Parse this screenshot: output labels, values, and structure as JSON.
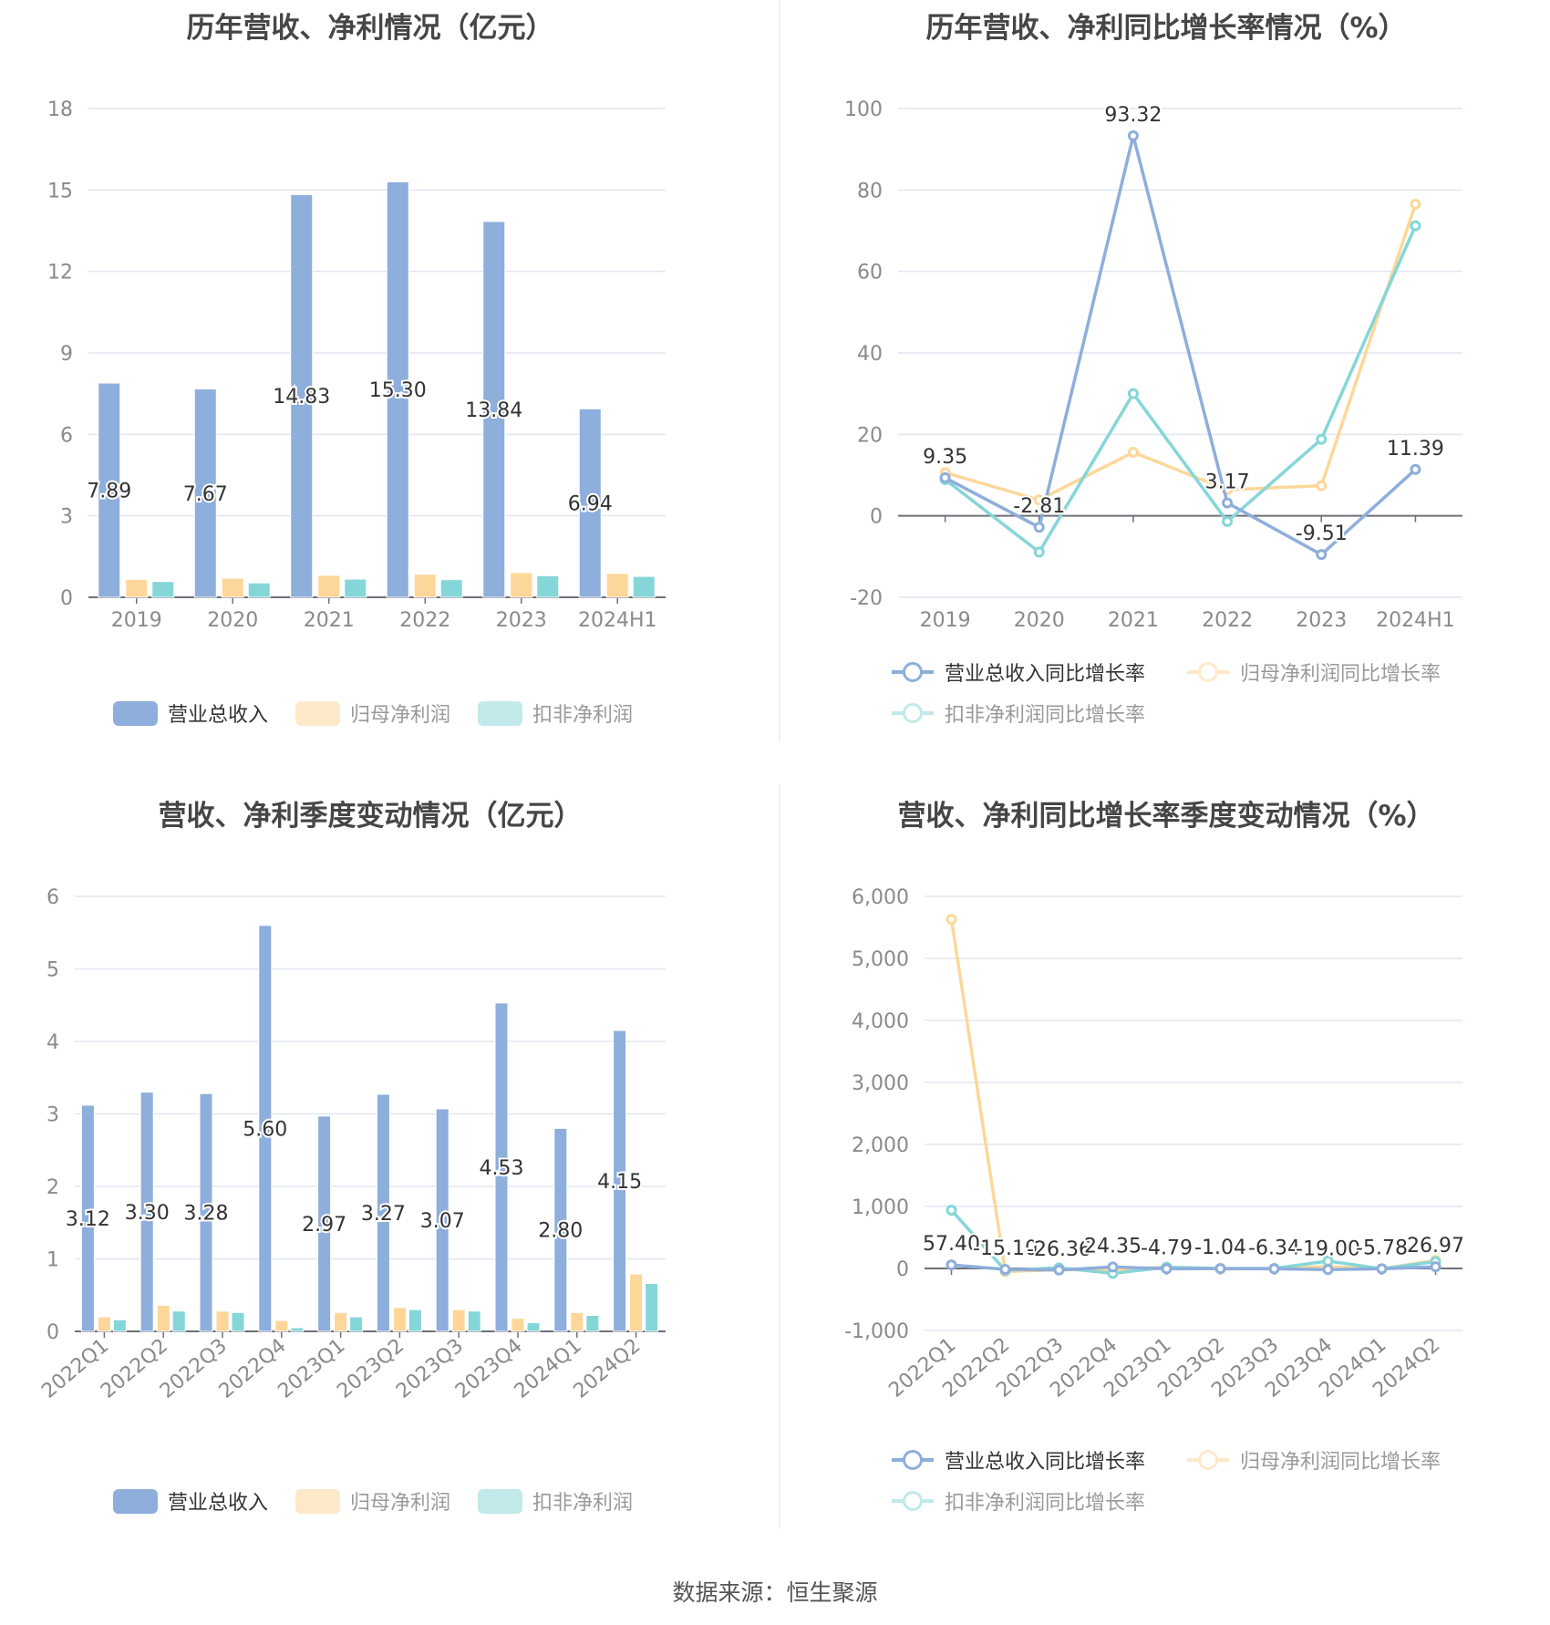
{
  "colors": {
    "revenue": "#8eaedb",
    "net_profit": "#fdd79a",
    "deducted_profit": "#85d6d8",
    "grid": "#e0e6f1",
    "axis": "#6e7079",
    "tick_text": "#8a8a8a"
  },
  "source": "数据来源：恒生聚源",
  "chart_data": [
    {
      "type": "bar",
      "title": "历年营收、净利情况（亿元）",
      "categories": [
        "2019",
        "2020",
        "2021",
        "2022",
        "2023",
        "2024H1"
      ],
      "ylim": [
        0,
        18
      ],
      "y_ticks": [
        "0",
        "3",
        "6",
        "9",
        "12",
        "15",
        "18"
      ],
      "grid": true,
      "legend_position": "bottom",
      "series": [
        {
          "name": "营业总收入",
          "values": [
            7.89,
            7.67,
            14.83,
            15.3,
            13.84,
            6.94
          ],
          "labels": [
            "7.89",
            "7.67",
            "14.83",
            "15.30",
            "13.84",
            "6.94"
          ]
        },
        {
          "name": "归母净利润",
          "values": [
            0.66,
            0.7,
            0.81,
            0.85,
            0.91,
            0.88
          ]
        },
        {
          "name": "扣非净利润",
          "values": [
            0.58,
            0.53,
            0.67,
            0.65,
            0.79,
            0.77
          ]
        }
      ]
    },
    {
      "type": "line",
      "title": "历年营收、净利同比增长率情况（%）",
      "categories": [
        "2019",
        "2020",
        "2021",
        "2022",
        "2023",
        "2024H1"
      ],
      "ylim": [
        -20,
        100
      ],
      "y_ticks": [
        "-20",
        "0",
        "20",
        "40",
        "60",
        "80",
        "100"
      ],
      "grid": true,
      "legend_position": "bottom",
      "series": [
        {
          "name": "营业总收入同比增长率",
          "values": [
            9.35,
            -2.81,
            93.32,
            3.17,
            -9.51,
            11.39
          ],
          "labels": [
            "9.35",
            "-2.81",
            "93.32",
            "3.17",
            "-9.51",
            "11.39"
          ]
        },
        {
          "name": "归母净利润同比增长率",
          "values": [
            10.6,
            3.9,
            15.6,
            6.4,
            7.4,
            76.5
          ]
        },
        {
          "name": "扣非净利润同比增长率",
          "values": [
            8.9,
            -8.9,
            30.0,
            -1.4,
            18.8,
            71.2
          ]
        }
      ]
    },
    {
      "type": "bar",
      "title": "营收、净利季度变动情况（亿元）",
      "categories": [
        "2022Q1",
        "2022Q2",
        "2022Q3",
        "2022Q4",
        "2023Q1",
        "2023Q2",
        "2023Q3",
        "2023Q4",
        "2024Q1",
        "2024Q2"
      ],
      "ylim": [
        0,
        6
      ],
      "y_ticks": [
        "0",
        "1",
        "2",
        "3",
        "4",
        "5",
        "6"
      ],
      "grid": true,
      "legend_position": "bottom",
      "series": [
        {
          "name": "营业总收入",
          "values": [
            3.12,
            3.3,
            3.28,
            5.6,
            2.97,
            3.27,
            3.07,
            4.53,
            2.8,
            4.15
          ],
          "labels": [
            "3.12",
            "3.30",
            "3.28",
            "5.60",
            "2.97",
            "3.27",
            "3.07",
            "4.53",
            "2.80",
            "4.15"
          ]
        },
        {
          "name": "归母净利润",
          "values": [
            0.2,
            0.36,
            0.28,
            0.15,
            0.26,
            0.33,
            0.3,
            0.18,
            0.26,
            0.79
          ]
        },
        {
          "name": "扣非净利润",
          "values": [
            0.16,
            0.28,
            0.26,
            0.05,
            0.2,
            0.3,
            0.28,
            0.12,
            0.22,
            0.66
          ]
        }
      ]
    },
    {
      "type": "line",
      "title": "营收、净利同比增长率季度变动情况（%）",
      "categories": [
        "2022Q1",
        "2022Q2",
        "2022Q3",
        "2022Q4",
        "2023Q1",
        "2023Q2",
        "2023Q3",
        "2023Q4",
        "2024Q1",
        "2024Q2"
      ],
      "ylim": [
        -1000,
        6000
      ],
      "y_ticks": [
        "-1,000",
        "0",
        "1,000",
        "2,000",
        "3,000",
        "4,000",
        "5,000",
        "6,000"
      ],
      "grid": true,
      "legend_position": "bottom",
      "series": [
        {
          "name": "营业总收入同比增长率",
          "values": [
            57.4,
            -15.1,
            -26.36,
            24.35,
            -4.79,
            -1.04,
            -6.34,
            -19.0,
            -5.78,
            26.97
          ],
          "labels": [
            "57.40",
            "-15.10",
            "-26.36",
            "24.35",
            "-4.79",
            "-1.04",
            "-6.34",
            "-19.00",
            "-5.78",
            "26.97"
          ]
        },
        {
          "name": "归母净利润同比增长率",
          "values": [
            5630,
            -50,
            -20,
            -20,
            20,
            -10,
            0,
            30,
            -5,
            130
          ]
        },
        {
          "name": "扣非净利润同比增长率",
          "values": [
            940,
            -30,
            10,
            -80,
            20,
            0,
            0,
            120,
            -5,
            110
          ]
        }
      ]
    }
  ]
}
